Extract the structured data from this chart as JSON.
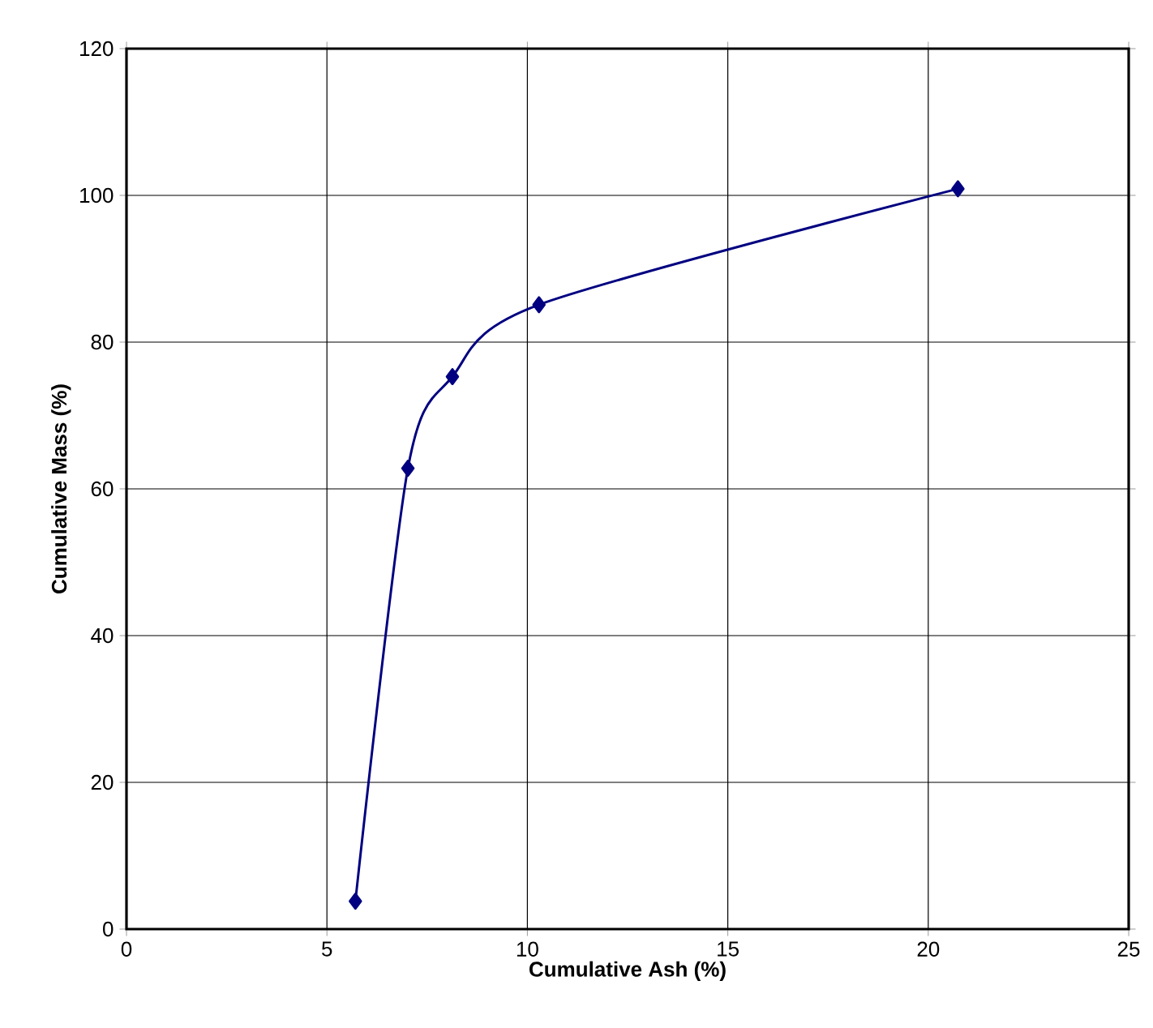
{
  "chart_data": {
    "type": "line",
    "xlabel": "Cumulative Ash (%)",
    "ylabel": "Cumulative Mass (%)",
    "x": [
      5.71,
      7.02,
      8.13,
      10.29,
      20.74
    ],
    "series": [
      {
        "color": "#000080",
        "values": [
          3.8,
          62.8,
          75.3,
          85.1,
          100.9
        ]
      }
    ],
    "xlim": [
      0,
      25
    ],
    "xticks": [
      0,
      5,
      10,
      15,
      20,
      25
    ],
    "ylim": [
      0,
      120
    ],
    "yticks": [
      0,
      20,
      40,
      60,
      80,
      100,
      120
    ],
    "grid": true,
    "marker": "diamond",
    "line_style": "solid"
  }
}
